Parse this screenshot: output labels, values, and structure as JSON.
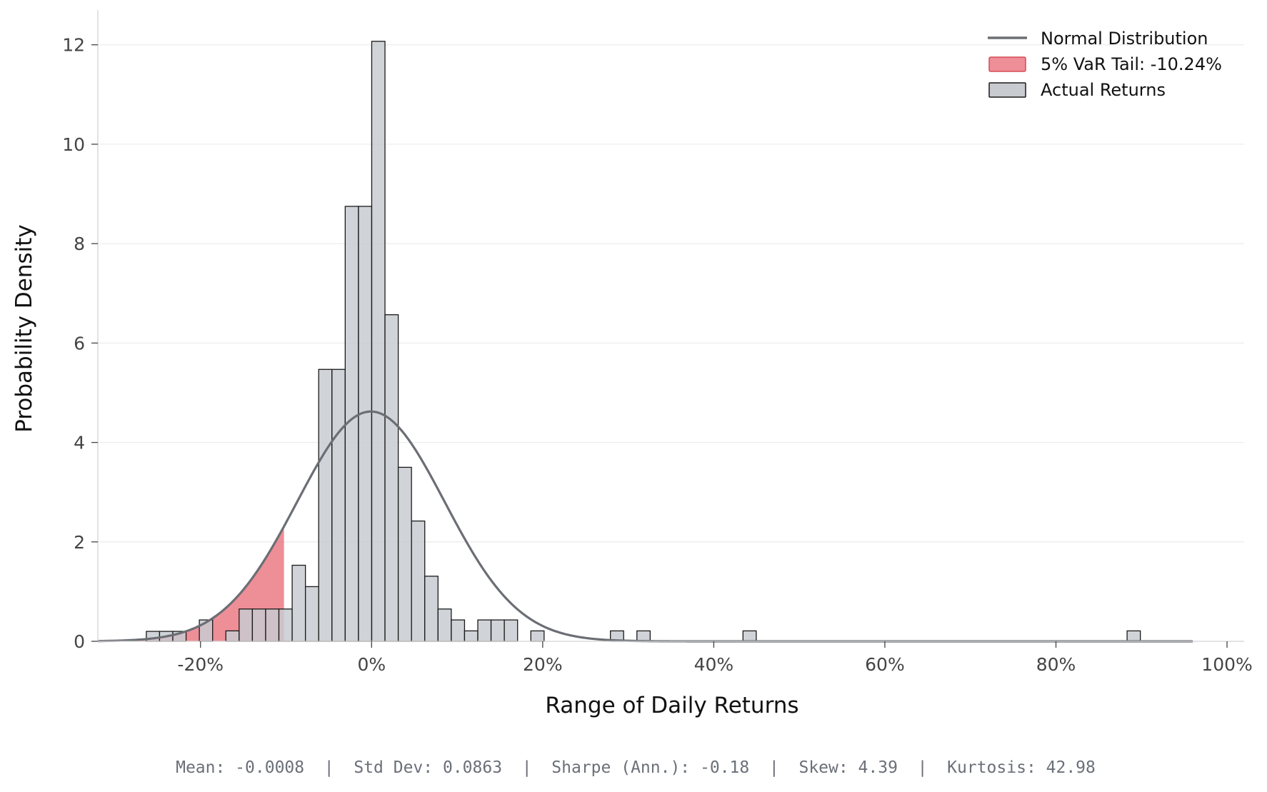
{
  "chart_data": {
    "type": "bar",
    "xlabel": "Range of Daily Returns",
    "ylabel": "Probability Density",
    "xlim": [
      -0.32,
      1.02
    ],
    "ylim": [
      0,
      12.7
    ],
    "x_ticks": [
      -0.2,
      0,
      0.2,
      0.4,
      0.6,
      0.8,
      1.0
    ],
    "x_tick_labels": [
      "-20%",
      "0%",
      "20%",
      "40%",
      "60%",
      "80%",
      "100%"
    ],
    "y_ticks": [
      0,
      2,
      4,
      6,
      8,
      10,
      12
    ],
    "y_tick_labels": [
      "0",
      "2",
      "4",
      "6",
      "8",
      "10",
      "12"
    ],
    "grid": "horizontal",
    "legend_position": "top-right",
    "bin_width": 0.0155,
    "histogram": {
      "name": "Actual Returns",
      "fill": "#c8cbd0",
      "edge": "#1a1a1a",
      "bins": [
        {
          "x": -0.2556,
          "density": 0.2
        },
        {
          "x": -0.2401,
          "density": 0.2
        },
        {
          "x": -0.2246,
          "density": 0.2
        },
        {
          "x": -0.1936,
          "density": 0.43
        },
        {
          "x": -0.1626,
          "density": 0.21
        },
        {
          "x": -0.1471,
          "density": 0.65
        },
        {
          "x": -0.1316,
          "density": 0.65
        },
        {
          "x": -0.1161,
          "density": 0.65
        },
        {
          "x": -0.1006,
          "density": 0.65
        },
        {
          "x": -0.0851,
          "density": 1.53
        },
        {
          "x": -0.0696,
          "density": 1.1
        },
        {
          "x": -0.0541,
          "density": 5.47
        },
        {
          "x": -0.0386,
          "density": 5.47
        },
        {
          "x": -0.0231,
          "density": 8.75
        },
        {
          "x": -0.0076,
          "density": 8.75
        },
        {
          "x": 0.0079,
          "density": 12.07
        },
        {
          "x": 0.0234,
          "density": 6.57
        },
        {
          "x": 0.0389,
          "density": 3.5
        },
        {
          "x": 0.0544,
          "density": 2.42
        },
        {
          "x": 0.0699,
          "density": 1.31
        },
        {
          "x": 0.0854,
          "density": 0.65
        },
        {
          "x": 0.1009,
          "density": 0.43
        },
        {
          "x": 0.1164,
          "density": 0.21
        },
        {
          "x": 0.1319,
          "density": 0.43
        },
        {
          "x": 0.1474,
          "density": 0.43
        },
        {
          "x": 0.1629,
          "density": 0.43
        },
        {
          "x": 0.1939,
          "density": 0.21
        },
        {
          "x": 0.2869,
          "density": 0.21
        },
        {
          "x": 0.3179,
          "density": 0.21
        },
        {
          "x": 0.4419,
          "density": 0.21
        },
        {
          "x": 0.8909,
          "density": 0.21
        }
      ]
    },
    "normal_fit": {
      "name": "Normal Distribution",
      "color": "#6b6e74",
      "mean": -0.0008,
      "std": 0.0863,
      "x_range": [
        -0.32,
        0.96
      ]
    },
    "var_tail": {
      "name": "5% VaR Tail: -10.24%",
      "threshold": -0.1024,
      "color": "#e8636f"
    },
    "legend": [
      "Normal Distribution",
      "5% VaR Tail: -10.24%",
      "Actual Returns"
    ],
    "stats_line": "Mean: -0.0008  |  Std Dev: 0.0863  |  Sharpe (Ann.): -0.18  |  Skew: 4.39  |  Kurtosis: 42.98"
  }
}
